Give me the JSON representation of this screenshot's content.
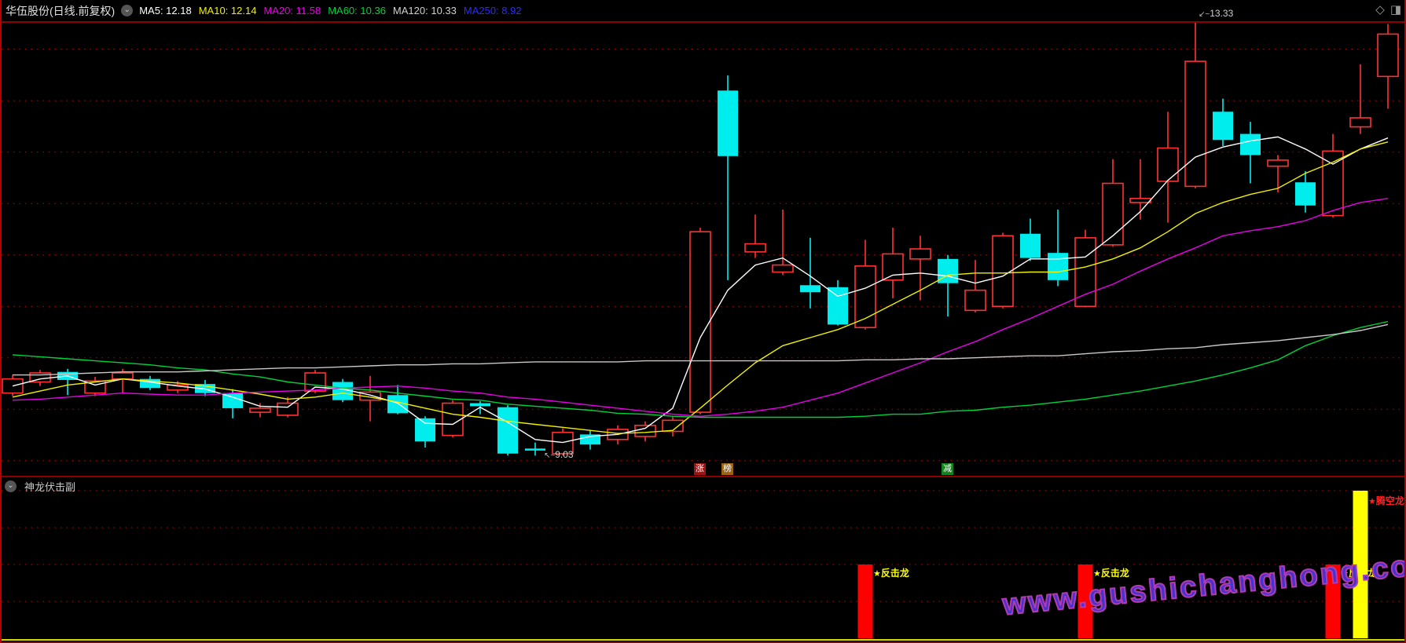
{
  "window": {
    "title": "华伍股份(日线.前复权)",
    "collapse_icon": "⌄",
    "diamond_icon": "◇",
    "layout_icon": "◨",
    "ma_legend": [
      {
        "label": "MA5:",
        "value": "12.18",
        "color": "#ffffff"
      },
      {
        "label": "MA10:",
        "value": "12.14",
        "color": "#f0f000"
      },
      {
        "label": "MA20:",
        "value": "11.58",
        "color": "#e800e8"
      },
      {
        "label": "MA60:",
        "value": "10.36",
        "color": "#00d23c"
      },
      {
        "label": "MA120:",
        "value": "10.33",
        "color": "#d0d0d0"
      },
      {
        "label": "MA250:",
        "value": "8.92",
        "color": "#2b2bff"
      }
    ]
  },
  "sub_panel": {
    "title": "神龙伏击副",
    "collapse_icon": "⌄"
  },
  "watermark": {
    "text": "www.gushichanghong.com"
  },
  "colors": {
    "up": "#ff3232",
    "down": "#00eded",
    "grid": "#c80000",
    "ma5": "#ffffff",
    "ma10": "#f0f000",
    "ma20": "#e800e8",
    "ma60": "#00d23c",
    "ma120": "#c8c8c8",
    "signal_red": "#ff0000",
    "signal_yellow": "#ffff00",
    "label_yellow": "#ffff00",
    "label_red": "#ff2222"
  },
  "chart_data": {
    "type": "candlestick",
    "main": {
      "title": "华伍股份 日线 K线图",
      "price_top": 13.33,
      "price_bottom": 8.83,
      "gridline_prices": [
        13.06,
        12.55,
        12.04,
        11.53,
        11.02,
        10.51,
        10.0,
        9.49,
        8.98
      ],
      "ohlc_order": [
        "open",
        "high",
        "low",
        "close"
      ],
      "candles": [
        [
          9.65,
          9.83,
          9.62,
          9.79
        ],
        [
          9.76,
          9.88,
          9.72,
          9.85
        ],
        [
          9.86,
          9.89,
          9.63,
          9.78
        ],
        [
          9.65,
          9.81,
          9.62,
          9.77
        ],
        [
          9.79,
          9.89,
          9.65,
          9.85
        ],
        [
          9.79,
          9.82,
          9.68,
          9.7
        ],
        [
          9.68,
          9.77,
          9.65,
          9.73
        ],
        [
          9.74,
          9.78,
          9.62,
          9.65
        ],
        [
          9.65,
          9.69,
          9.4,
          9.5
        ],
        [
          9.46,
          9.55,
          9.41,
          9.5
        ],
        [
          9.43,
          9.61,
          9.41,
          9.55
        ],
        [
          9.67,
          9.88,
          9.65,
          9.85
        ],
        [
          9.76,
          9.79,
          9.56,
          9.58
        ],
        [
          9.58,
          9.82,
          9.37,
          9.66
        ],
        [
          9.63,
          9.73,
          9.44,
          9.45
        ],
        [
          9.4,
          9.42,
          9.11,
          9.17
        ],
        [
          9.23,
          9.58,
          9.21,
          9.55
        ],
        [
          9.55,
          9.57,
          9.44,
          9.52
        ],
        [
          9.51,
          9.53,
          9.03,
          9.05
        ],
        [
          9.1,
          9.16,
          9.03,
          9.08
        ],
        [
          9.05,
          9.3,
          9.03,
          9.26
        ],
        [
          9.24,
          9.28,
          9.09,
          9.14
        ],
        [
          9.19,
          9.33,
          9.14,
          9.29
        ],
        [
          9.22,
          9.37,
          9.17,
          9.33
        ],
        [
          9.27,
          9.42,
          9.22,
          9.38
        ],
        [
          9.46,
          11.29,
          9.44,
          11.25
        ],
        [
          12.65,
          12.8,
          10.77,
          12.0
        ],
        [
          11.05,
          11.42,
          10.99,
          11.13
        ],
        [
          10.85,
          11.47,
          10.82,
          10.92
        ],
        [
          10.72,
          11.19,
          10.49,
          10.65
        ],
        [
          10.7,
          10.77,
          10.32,
          10.33
        ],
        [
          10.3,
          11.17,
          10.28,
          10.91
        ],
        [
          10.77,
          11.29,
          10.59,
          11.03
        ],
        [
          10.98,
          11.21,
          10.57,
          11.08
        ],
        [
          10.98,
          11.02,
          10.41,
          10.74
        ],
        [
          10.47,
          10.97,
          10.45,
          10.67
        ],
        [
          10.51,
          11.24,
          10.49,
          11.21
        ],
        [
          11.23,
          11.38,
          10.96,
          10.99
        ],
        [
          11.04,
          11.47,
          10.71,
          10.77
        ],
        [
          10.51,
          11.27,
          10.5,
          11.19
        ],
        [
          11.12,
          11.97,
          11.1,
          11.73
        ],
        [
          11.54,
          11.97,
          11.37,
          11.58
        ],
        [
          11.75,
          12.44,
          11.34,
          12.08
        ],
        [
          11.7,
          13.33,
          11.68,
          12.94
        ],
        [
          12.44,
          12.57,
          12.1,
          12.16
        ],
        [
          12.22,
          12.34,
          11.73,
          12.01
        ],
        [
          11.9,
          12.01,
          11.64,
          11.96
        ],
        [
          11.74,
          11.85,
          11.44,
          11.51
        ],
        [
          11.41,
          12.22,
          11.39,
          12.05
        ],
        [
          12.29,
          12.91,
          12.22,
          12.38
        ],
        [
          12.79,
          13.31,
          12.47,
          13.21
        ]
      ],
      "series": [
        {
          "name": "MA5",
          "values": [
            9.72,
            9.79,
            9.82,
            9.73,
            9.79,
            9.76,
            9.72,
            9.69,
            9.61,
            9.52,
            9.51,
            9.71,
            9.69,
            9.63,
            9.55,
            9.35,
            9.34,
            9.51,
            9.36,
            9.19,
            9.16,
            9.22,
            9.24,
            9.3,
            9.5,
            10.2,
            10.67,
            10.92,
            10.99,
            10.81,
            10.61,
            10.69,
            10.82,
            10.84,
            10.81,
            10.74,
            10.81,
            10.98,
            10.98,
            11.0,
            11.21,
            11.45,
            11.76,
            11.99,
            12.09,
            12.15,
            12.19,
            12.07,
            11.92,
            12.07,
            12.18
          ]
        },
        {
          "name": "MA10",
          "values": [
            9.61,
            9.67,
            9.73,
            9.76,
            9.79,
            9.77,
            9.75,
            9.72,
            9.68,
            9.64,
            9.59,
            9.61,
            9.65,
            9.61,
            9.56,
            9.5,
            9.44,
            9.41,
            9.37,
            9.34,
            9.31,
            9.28,
            9.25,
            9.26,
            9.28,
            9.5,
            9.73,
            9.95,
            10.12,
            10.2,
            10.28,
            10.39,
            10.53,
            10.67,
            10.82,
            10.84,
            10.84,
            10.85,
            10.85,
            10.9,
            10.98,
            11.09,
            11.25,
            11.43,
            11.54,
            11.62,
            11.68,
            11.83,
            11.94,
            12.07,
            12.14
          ]
        },
        {
          "name": "MA20",
          "values": [
            9.58,
            9.59,
            9.61,
            9.63,
            9.65,
            9.64,
            9.63,
            9.63,
            9.65,
            9.66,
            9.67,
            9.68,
            9.7,
            9.71,
            9.72,
            9.7,
            9.67,
            9.65,
            9.61,
            9.59,
            9.56,
            9.53,
            9.5,
            9.47,
            9.44,
            9.42,
            9.44,
            9.47,
            9.51,
            9.58,
            9.65,
            9.75,
            9.85,
            9.95,
            10.06,
            10.16,
            10.28,
            10.39,
            10.51,
            10.63,
            10.73,
            10.86,
            10.98,
            11.09,
            11.21,
            11.26,
            11.3,
            11.36,
            11.46,
            11.54,
            11.58
          ]
        },
        {
          "name": "MA60",
          "values": [
            10.03,
            10.01,
            9.99,
            9.97,
            9.95,
            9.93,
            9.9,
            9.88,
            9.84,
            9.81,
            9.76,
            9.73,
            9.7,
            9.68,
            9.65,
            9.62,
            9.59,
            9.58,
            9.54,
            9.52,
            9.5,
            9.48,
            9.45,
            9.44,
            9.42,
            9.41,
            9.41,
            9.41,
            9.41,
            9.41,
            9.41,
            9.42,
            9.44,
            9.44,
            9.47,
            9.48,
            9.51,
            9.53,
            9.56,
            9.59,
            9.63,
            9.67,
            9.72,
            9.77,
            9.83,
            9.9,
            9.98,
            10.12,
            10.22,
            10.3,
            10.36
          ]
        },
        {
          "name": "MA120",
          "values": [
            9.83,
            9.83,
            9.84,
            9.85,
            9.86,
            9.86,
            9.86,
            9.87,
            9.88,
            9.89,
            9.9,
            9.9,
            9.91,
            9.92,
            9.93,
            9.93,
            9.94,
            9.94,
            9.95,
            9.96,
            9.96,
            9.96,
            9.96,
            9.97,
            9.97,
            9.97,
            9.97,
            9.97,
            9.97,
            9.97,
            9.97,
            9.98,
            9.98,
            9.99,
            9.99,
            10.0,
            10.01,
            10.02,
            10.02,
            10.04,
            10.06,
            10.07,
            10.09,
            10.1,
            10.13,
            10.15,
            10.17,
            10.2,
            10.23,
            10.27,
            10.33
          ]
        }
      ],
      "annotations": [
        {
          "type": "high",
          "index": 43,
          "arrow": "↙~",
          "value": "13.33"
        },
        {
          "type": "low",
          "index": 19,
          "arrow": "↖~",
          "value": "9.03"
        }
      ],
      "event_markers": [
        {
          "index": 25,
          "text": "涨",
          "bg": "#9a1414"
        },
        {
          "index": 26,
          "text": "榜",
          "bg": "#9a6410"
        },
        {
          "index": 34,
          "text": "减",
          "bg": "#14821e"
        }
      ]
    },
    "indicator": {
      "type": "bar",
      "title": "神龙伏击副",
      "ylim": [
        0,
        4.4
      ],
      "gridline_values": [
        1,
        2,
        3,
        4
      ],
      "signals": [
        {
          "index": 31,
          "label": "★反击龙",
          "value": 2,
          "bar_color": "#ff0000",
          "label_color": "#ffff00"
        },
        {
          "index": 39,
          "label": "★反击龙",
          "value": 2,
          "bar_color": "#ff0000",
          "label_color": "#ffff00"
        },
        {
          "index": 48,
          "label": "★反击龙",
          "value": 2,
          "bar_color": "#ff0000",
          "label_color": "#ffff00"
        },
        {
          "index": 49,
          "label": "★腾空龙",
          "value": 4,
          "bar_color": "#ffff00",
          "label_color": "#ff2222"
        }
      ]
    }
  }
}
